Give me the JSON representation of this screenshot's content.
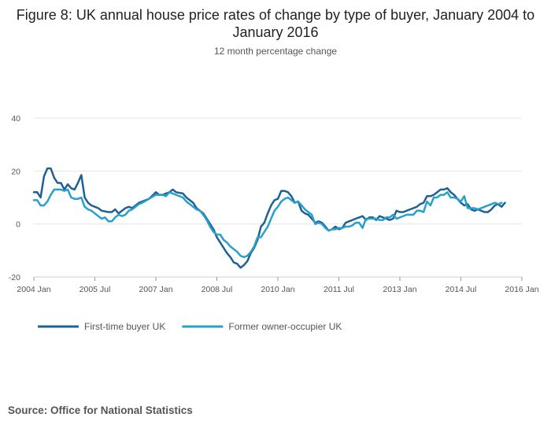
{
  "chart_data": {
    "type": "line",
    "title": "Figure 8: UK annual house price rates of change by type of buyer, January 2004 to January 2016",
    "subtitle": "12 month percentage change",
    "x_ticks": [
      "2004 Jan",
      "2005 Jul",
      "2007 Jan",
      "2008 Jul",
      "2010 Jan",
      "2011 Jul",
      "2013 Jan",
      "2014 Jul",
      "2016 Jan"
    ],
    "x_range_months": [
      0,
      144
    ],
    "y_ticks": [
      40,
      20,
      0,
      -20
    ],
    "ylim": [
      -20,
      40
    ],
    "grid": true,
    "legend_position": "bottom-left",
    "series": [
      {
        "name": "First-time buyer UK",
        "color": "#206095",
        "points": [
          [
            0,
            12
          ],
          [
            1,
            12
          ],
          [
            2,
            10
          ],
          [
            3,
            18
          ],
          [
            4,
            21
          ],
          [
            5,
            21
          ],
          [
            6,
            17.5
          ],
          [
            7,
            15.5
          ],
          [
            8,
            15.5
          ],
          [
            9,
            13
          ],
          [
            10,
            15
          ],
          [
            11,
            13.5
          ],
          [
            12,
            13
          ],
          [
            13,
            15.5
          ],
          [
            14,
            18.5
          ],
          [
            15,
            10
          ],
          [
            16,
            8
          ],
          [
            17,
            7
          ],
          [
            18,
            6.5
          ],
          [
            19,
            6
          ],
          [
            20,
            5
          ],
          [
            22,
            4.5
          ],
          [
            23,
            4.5
          ],
          [
            24,
            5.5
          ],
          [
            25,
            4
          ],
          [
            27,
            6
          ],
          [
            28,
            6.5
          ],
          [
            29,
            6
          ],
          [
            30,
            7
          ],
          [
            31,
            8
          ],
          [
            32,
            8.5
          ],
          [
            34,
            9.5
          ],
          [
            36,
            12
          ],
          [
            37,
            11
          ],
          [
            38,
            11
          ],
          [
            39,
            11.5
          ],
          [
            40,
            12
          ],
          [
            41,
            13
          ],
          [
            42,
            12
          ],
          [
            44,
            11.5
          ],
          [
            45,
            10
          ],
          [
            46,
            9
          ],
          [
            47,
            8
          ],
          [
            48,
            6
          ],
          [
            50,
            4
          ],
          [
            51,
            2
          ],
          [
            52,
            0
          ],
          [
            53,
            -2
          ],
          [
            54,
            -5
          ],
          [
            55,
            -7
          ],
          [
            56,
            -9
          ],
          [
            57,
            -11
          ],
          [
            58,
            -12.5
          ],
          [
            59,
            -14.5
          ],
          [
            60,
            -15
          ],
          [
            61,
            -16.5
          ],
          [
            62,
            -15.5
          ],
          [
            63,
            -14
          ],
          [
            64,
            -11
          ],
          [
            65,
            -9
          ],
          [
            66,
            -6
          ],
          [
            67,
            -1
          ],
          [
            68,
            0.5
          ],
          [
            69,
            4
          ],
          [
            70,
            7
          ],
          [
            71,
            9
          ],
          [
            72,
            9.5
          ],
          [
            73,
            12.5
          ],
          [
            74,
            12.5
          ],
          [
            75,
            12
          ],
          [
            76,
            10.5
          ],
          [
            77,
            8
          ],
          [
            78,
            8.5
          ],
          [
            79,
            5
          ],
          [
            80,
            4
          ],
          [
            81,
            3.5
          ],
          [
            82,
            2
          ],
          [
            83,
            0.5
          ],
          [
            84,
            1
          ],
          [
            85,
            0.5
          ],
          [
            86,
            -1
          ],
          [
            87,
            -2.5
          ],
          [
            88,
            -2
          ],
          [
            89,
            -1
          ],
          [
            90,
            -2
          ],
          [
            91,
            -1.5
          ],
          [
            92,
            0.5
          ],
          [
            93,
            1
          ],
          [
            94,
            1.5
          ],
          [
            95,
            2
          ],
          [
            96,
            2.5
          ],
          [
            97,
            3
          ],
          [
            98,
            1.5
          ],
          [
            99,
            2.5
          ],
          [
            100,
            2.5
          ],
          [
            101,
            1.5
          ],
          [
            102,
            3
          ],
          [
            103,
            2.5
          ],
          [
            104,
            2
          ],
          [
            105,
            1.5
          ],
          [
            106,
            2
          ],
          [
            107,
            5
          ],
          [
            108,
            4.5
          ],
          [
            109,
            4.5
          ],
          [
            110,
            5
          ],
          [
            111,
            5.5
          ],
          [
            112,
            6
          ],
          [
            113,
            6.5
          ],
          [
            114,
            7.5
          ],
          [
            115,
            8
          ],
          [
            116,
            10.5
          ],
          [
            117,
            10.5
          ],
          [
            118,
            11
          ],
          [
            119,
            12
          ],
          [
            120,
            13
          ],
          [
            121,
            13
          ],
          [
            122,
            13.5
          ],
          [
            123,
            12
          ],
          [
            124,
            11
          ],
          [
            125,
            9.5
          ],
          [
            126,
            8
          ],
          [
            127,
            7
          ],
          [
            128,
            7.5
          ],
          [
            129,
            5.5
          ],
          [
            130,
            5
          ],
          [
            131,
            5.5
          ],
          [
            132,
            5
          ],
          [
            133,
            4.5
          ],
          [
            134,
            4.5
          ],
          [
            135,
            5.5
          ],
          [
            136,
            7
          ],
          [
            137,
            7.5
          ],
          [
            138,
            6.5
          ],
          [
            139,
            8
          ]
        ]
      },
      {
        "name": "Former owner-occupier UK",
        "color": "#27a0cc",
        "points": [
          [
            0,
            9
          ],
          [
            1,
            9
          ],
          [
            2,
            7
          ],
          [
            3,
            7
          ],
          [
            4,
            8.5
          ],
          [
            5,
            11
          ],
          [
            6,
            13
          ],
          [
            7,
            13
          ],
          [
            8,
            13
          ],
          [
            9,
            12.5
          ],
          [
            10,
            13
          ],
          [
            11,
            10
          ],
          [
            12,
            9.5
          ],
          [
            13,
            9.5
          ],
          [
            14,
            10
          ],
          [
            15,
            6.5
          ],
          [
            16,
            5.5
          ],
          [
            17,
            5
          ],
          [
            18,
            4
          ],
          [
            19,
            3
          ],
          [
            20,
            2
          ],
          [
            21,
            2.5
          ],
          [
            22,
            1
          ],
          [
            23,
            1
          ],
          [
            24,
            2.5
          ],
          [
            25,
            3.5
          ],
          [
            26,
            3
          ],
          [
            27,
            3.5
          ],
          [
            28,
            5
          ],
          [
            29,
            5.5
          ],
          [
            30,
            6.5
          ],
          [
            31,
            7.5
          ],
          [
            32,
            8
          ],
          [
            34,
            9.5
          ],
          [
            36,
            11
          ],
          [
            37,
            11
          ],
          [
            38,
            11
          ],
          [
            39,
            10.5
          ],
          [
            40,
            12
          ],
          [
            41,
            11.5
          ],
          [
            42,
            11
          ],
          [
            43,
            10.5
          ],
          [
            44,
            10
          ],
          [
            45,
            8.5
          ],
          [
            46,
            7.5
          ],
          [
            47,
            6.5
          ],
          [
            48,
            5.5
          ],
          [
            49,
            5
          ],
          [
            50,
            3.5
          ],
          [
            51,
            1.5
          ],
          [
            52,
            -1
          ],
          [
            53,
            -3
          ],
          [
            54,
            -4
          ],
          [
            55,
            -4
          ],
          [
            56,
            -6
          ],
          [
            57,
            -7
          ],
          [
            58,
            -8.5
          ],
          [
            59,
            -9.5
          ],
          [
            60,
            -10.5
          ],
          [
            61,
            -12
          ],
          [
            62,
            -12.5
          ],
          [
            63,
            -12
          ],
          [
            64,
            -10.5
          ],
          [
            65,
            -8.5
          ],
          [
            66,
            -5
          ],
          [
            67,
            -5
          ],
          [
            68,
            -3
          ],
          [
            69,
            -1
          ],
          [
            70,
            2
          ],
          [
            71,
            5
          ],
          [
            72,
            6.5
          ],
          [
            73,
            8.5
          ],
          [
            74,
            9.5
          ],
          [
            75,
            10
          ],
          [
            76,
            9
          ],
          [
            77,
            8
          ],
          [
            78,
            8.5
          ],
          [
            79,
            7
          ],
          [
            80,
            5.5
          ],
          [
            81,
            4.5
          ],
          [
            82,
            3.5
          ],
          [
            83,
            0
          ],
          [
            84,
            0.5
          ],
          [
            85,
            0
          ],
          [
            86,
            -1.5
          ],
          [
            87,
            -2.5
          ],
          [
            88,
            -2
          ],
          [
            89,
            -2
          ],
          [
            90,
            -1.5
          ],
          [
            91,
            -1.5
          ],
          [
            92,
            -1
          ],
          [
            93,
            -1
          ],
          [
            94,
            -0.5
          ],
          [
            95,
            0.5
          ],
          [
            96,
            0.5
          ],
          [
            97,
            -1.5
          ],
          [
            98,
            2
          ],
          [
            99,
            2
          ],
          [
            100,
            2
          ],
          [
            101,
            2
          ],
          [
            102,
            1.5
          ],
          [
            103,
            1.5
          ],
          [
            104,
            2.5
          ],
          [
            105,
            2.5
          ],
          [
            106,
            3.5
          ],
          [
            107,
            2
          ],
          [
            108,
            2.5
          ],
          [
            109,
            3
          ],
          [
            110,
            3.5
          ],
          [
            111,
            3.5
          ],
          [
            112,
            3.5
          ],
          [
            113,
            5
          ],
          [
            114,
            5
          ],
          [
            115,
            4.5
          ],
          [
            116,
            8.5
          ],
          [
            117,
            7
          ],
          [
            118,
            10
          ],
          [
            119,
            10
          ],
          [
            120,
            11
          ],
          [
            121,
            11
          ],
          [
            122,
            12
          ],
          [
            123,
            10
          ],
          [
            124,
            10
          ],
          [
            125,
            9.5
          ],
          [
            126,
            8.5
          ],
          [
            127,
            10.5
          ],
          [
            128,
            6
          ],
          [
            129,
            6
          ],
          [
            130,
            6
          ],
          [
            131,
            5.5
          ],
          [
            132,
            6
          ],
          [
            133,
            6.5
          ],
          [
            134,
            7
          ],
          [
            135,
            7.5
          ],
          [
            136,
            8
          ],
          [
            137,
            7.5
          ],
          [
            138,
            8
          ]
        ]
      }
    ]
  },
  "source": "Source: Office for National Statistics"
}
